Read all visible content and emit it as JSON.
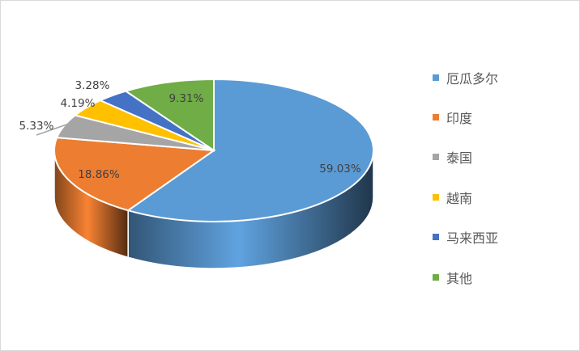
{
  "chart_data": {
    "type": "pie",
    "style": "3d",
    "title": "",
    "legend_position": "right",
    "start_angle": "12 o'clock, clockwise",
    "slices": [
      {
        "name": "厄瓜多尔",
        "value": 59.03,
        "label": "59.03%",
        "color": "#5B9BD5"
      },
      {
        "name": "印度",
        "value": 18.86,
        "label": "18.86%",
        "color": "#ED7D31"
      },
      {
        "name": "泰国",
        "value": 5.33,
        "label": "5.33%",
        "color": "#A5A5A5"
      },
      {
        "name": "越南",
        "value": 4.19,
        "label": "4.19%",
        "color": "#FFC000"
      },
      {
        "name": "马来西亚",
        "value": 3.28,
        "label": "3.28%",
        "color": "#4472C4"
      },
      {
        "name": "其他",
        "value": 9.31,
        "label": "9.31%",
        "color": "#70AD47"
      }
    ]
  }
}
